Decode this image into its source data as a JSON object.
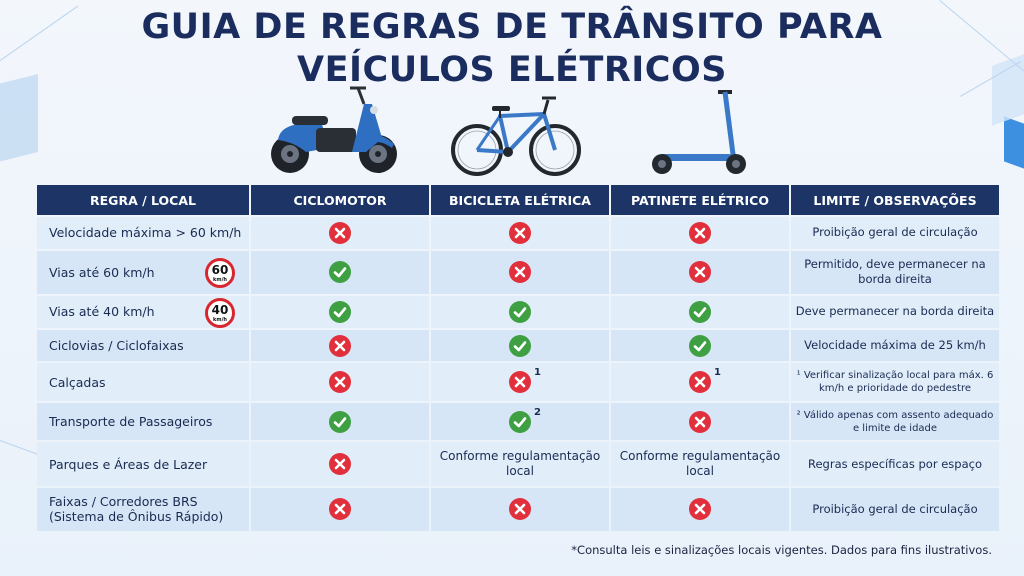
{
  "title": {
    "line1": "GUIA DE REGRAS DE TRÂNSITO PARA",
    "line2": "VEÍCULOS ELÉTRICOS"
  },
  "headers": [
    "REGRA / LOCAL",
    "CICLOMOTOR",
    "BICICLETA ELÉTRICA",
    "PATINETE ELÉTRICO",
    "LIMITE / OBSERVAÇÕES"
  ],
  "vehicles": [
    "moped-image",
    "electric-bicycle-image",
    "electric-scooter-image"
  ],
  "rows": [
    {
      "rule": "Velocidade máxima > 60 km/h",
      "cells": [
        "no",
        "no",
        "no"
      ],
      "obs": "Proibição geral de circulação"
    },
    {
      "rule": "Vias até 60 km/h",
      "sign": {
        "num": "60",
        "unit": "km/h"
      },
      "cells": [
        "yes",
        "no",
        "no"
      ],
      "obs": "Permitido, deve permanecer na borda direita"
    },
    {
      "rule": "Vias até 40 km/h",
      "sign": {
        "num": "40",
        "unit": "km/h"
      },
      "cells": [
        "yes",
        "yes",
        "yes"
      ],
      "obs": "Deve permanecer na borda direita"
    },
    {
      "rule": "Ciclovias / Ciclofaixas",
      "cells": [
        "no",
        "yes",
        "yes"
      ],
      "obs": "Velocidade máxima de 25 km/h"
    },
    {
      "rule": "Calçadas",
      "cells": [
        "no",
        "no",
        "no"
      ],
      "sups": [
        "",
        "1",
        "1"
      ],
      "obs": "¹ Verificar sinalização local para máx. 6 km/h e prioridade do pedestre",
      "obs_small": true
    },
    {
      "rule": "Transporte de Passageiros",
      "cells": [
        "yes",
        "yes",
        "no"
      ],
      "sups": [
        "",
        "2",
        ""
      ],
      "obs": "² Válido apenas com assento adequado e limite de idade",
      "obs_small": true
    },
    {
      "rule": "Parques e Áreas de Lazer",
      "cells": [
        "no",
        "Conforme regulamentação local",
        "Conforme regulamentação local"
      ],
      "obs": "Regras específicas por espaço"
    },
    {
      "rule": "Faixas / Corredores BRS (Sistema de Ônibus Rápido)",
      "cells": [
        "no",
        "no",
        "no"
      ],
      "obs": "Proibição geral de circulação"
    }
  ],
  "footnote": "*Consulta leis e sinalizações locais vigentes. Dados para fins ilustrativos.",
  "colors": {
    "header_bg": "#1c3566",
    "no": "#e1303b",
    "yes": "#3fa043",
    "title": "#1b2d5e"
  }
}
